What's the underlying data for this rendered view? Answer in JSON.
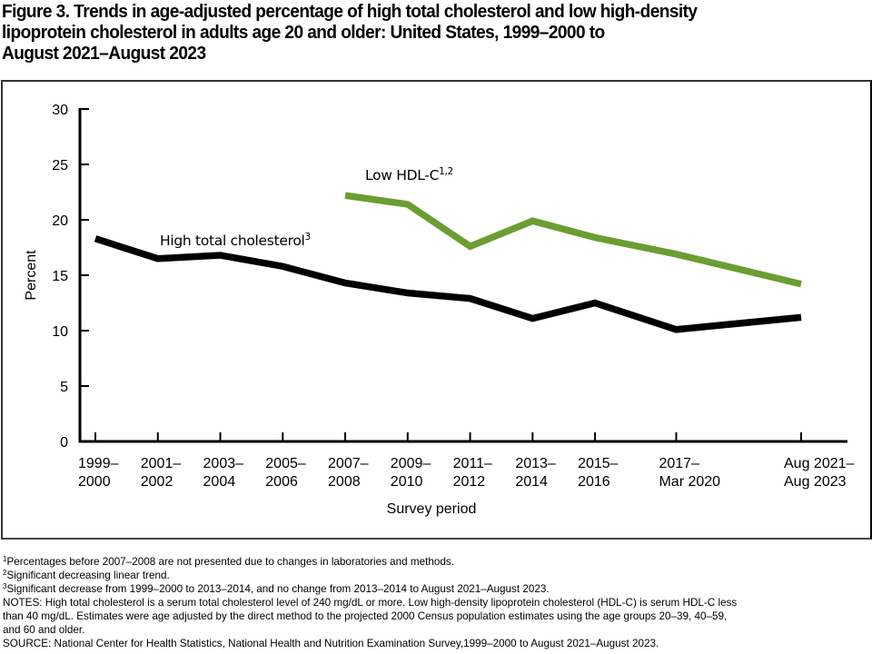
{
  "title_lines": [
    "Figure 3. Trends in age-adjusted percentage of high total cholesterol and low high-density",
    "lipoprotein cholesterol in adults age 20 and older: United States, 1999–2000 to",
    "August 2021–August 2023"
  ],
  "chart_data": {
    "type": "line",
    "title": "Figure 3. Trends in age-adjusted percentage of high total cholesterol and low high-density lipoprotein cholesterol in adults age 20 and older: United States, 1999–2000 to August 2021–August 2023",
    "xlabel": "Survey period",
    "ylabel": "Percent",
    "ylim": [
      0,
      30
    ],
    "yticks": [
      "0",
      "5",
      "10",
      "15",
      "20",
      "25",
      "30"
    ],
    "grid": false,
    "categories": [
      [
        "1999–",
        "2000"
      ],
      [
        "2001–",
        "2002"
      ],
      [
        "2003–",
        "2004"
      ],
      [
        "2005–",
        "2006"
      ],
      [
        "2007–",
        "2008"
      ],
      [
        "2009–",
        "2010"
      ],
      [
        "2011–",
        "2012"
      ],
      [
        "2013–",
        "2014"
      ],
      [
        "2015–",
        "2016"
      ],
      [
        "2017–",
        "Mar 2020"
      ],
      [
        "Aug 2021–",
        "Aug 2023"
      ]
    ],
    "category_positions": [
      1999.5,
      2001.5,
      2003.5,
      2005.5,
      2007.5,
      2009.5,
      2011.5,
      2013.5,
      2015.5,
      2018.1,
      2022.1
    ],
    "series": [
      {
        "name": "High total cholesterol",
        "label": "High total cholesterol",
        "label_sup": "3",
        "color": "#000000",
        "values": [
          18.3,
          16.5,
          16.8,
          15.8,
          14.3,
          13.4,
          12.9,
          11.1,
          12.5,
          10.1,
          11.2
        ]
      },
      {
        "name": "Low HDL-C",
        "label": "Low HDL-C",
        "label_sup": "1,2",
        "color": "#6b9e32",
        "values": [
          null,
          null,
          null,
          null,
          22.2,
          21.4,
          17.6,
          19.9,
          18.4,
          16.9,
          14.2
        ]
      }
    ]
  },
  "footnotes": [
    {
      "sup": "1",
      "text": "Percentages before 2007–2008 are not presented due to changes in laboratories and methods."
    },
    {
      "sup": "2",
      "text": "Significant decreasing linear trend."
    },
    {
      "sup": "3",
      "text": "Significant decrease from 1999–2000 to 2013–2014, and no change from 2013–2014 to August 2021–August 2023."
    }
  ],
  "notes_lines": [
    "NOTES: High total cholesterol is a serum total cholesterol level of 240 mg/dL or more. Low high-density lipoprotein cholesterol (HDL-C) is serum HDL-C less",
    "than 40 mg/dL. Estimates were age adjusted by the direct method to the projected 2000 Census population estimates using the age groups 20–39, 40–59,",
    "and 60 and older."
  ],
  "source": "SOURCE: National Center for Health Statistics, National Health and Nutrition Examination Survey,1999–2000 to August 2021–August 2023."
}
